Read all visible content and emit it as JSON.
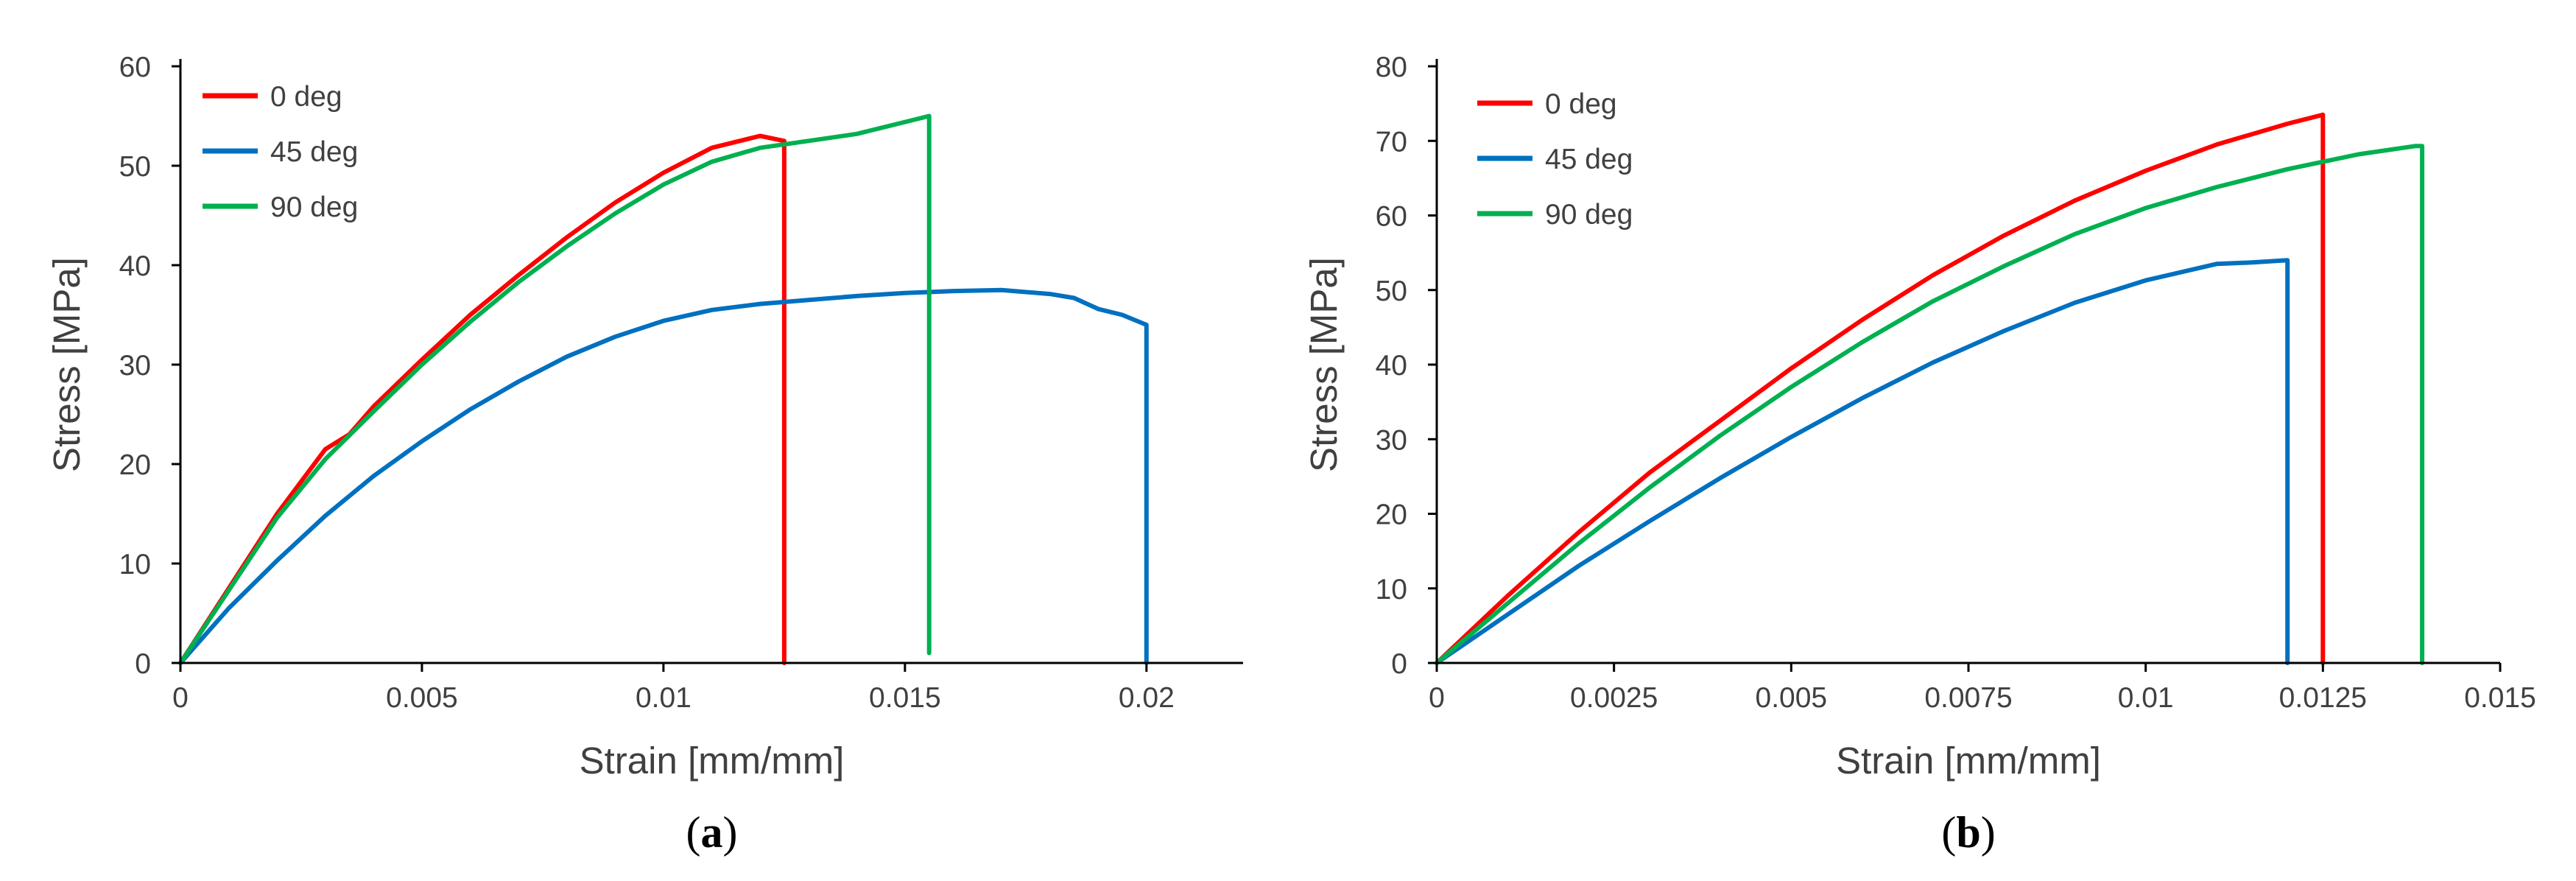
{
  "chart_data": [
    {
      "type": "line",
      "title": "",
      "panel_label": "a",
      "xlabel": "Strain [mm/mm]",
      "ylabel": "Stress [MPa]",
      "xlim": [
        0,
        0.022
      ],
      "ylim": [
        0,
        60
      ],
      "x_ticks": [
        0,
        0.005,
        0.01,
        0.015,
        0.02
      ],
      "x_tick_labels": [
        "0",
        "0.005",
        "0.01",
        "0.015",
        "0.02"
      ],
      "y_ticks": [
        0,
        10,
        20,
        30,
        40,
        50,
        60
      ],
      "y_tick_labels": [
        "0",
        "10",
        "20",
        "30",
        "40",
        "50",
        "60"
      ],
      "grid": false,
      "legend_position": "top-left",
      "series": [
        {
          "name": "0 deg",
          "color": "#ff0000",
          "x": [
            0,
            0.001,
            0.002,
            0.003,
            0.0035,
            0.004,
            0.005,
            0.006,
            0.007,
            0.008,
            0.009,
            0.01,
            0.011,
            0.012,
            0.0125,
            0.0125
          ],
          "y": [
            0,
            7.5,
            15,
            21.5,
            23,
            25.8,
            30.5,
            35,
            39,
            42.8,
            46.3,
            49.3,
            51.8,
            53,
            52.5,
            0
          ]
        },
        {
          "name": "45 deg",
          "color": "#0070c0",
          "x": [
            0,
            0.001,
            0.002,
            0.003,
            0.004,
            0.005,
            0.006,
            0.007,
            0.008,
            0.009,
            0.01,
            0.011,
            0.012,
            0.013,
            0.014,
            0.015,
            0.016,
            0.017,
            0.018,
            0.0185,
            0.019,
            0.0195,
            0.02,
            0.02
          ],
          "y": [
            0,
            5.5,
            10.3,
            14.8,
            18.8,
            22.3,
            25.5,
            28.3,
            30.8,
            32.8,
            34.4,
            35.5,
            36.1,
            36.5,
            36.9,
            37.2,
            37.4,
            37.5,
            37.1,
            36.7,
            35.6,
            35,
            34,
            0
          ]
        },
        {
          "name": "90 deg",
          "color": "#00b050",
          "x": [
            0,
            0.001,
            0.002,
            0.003,
            0.004,
            0.005,
            0.006,
            0.007,
            0.008,
            0.009,
            0.01,
            0.011,
            0.012,
            0.013,
            0.014,
            0.015,
            0.0155,
            0.0155
          ],
          "y": [
            0,
            7.3,
            14.6,
            20.5,
            25.3,
            30,
            34.3,
            38.3,
            41.9,
            45.2,
            48.1,
            50.4,
            51.8,
            52.5,
            53.2,
            54.4,
            55,
            1
          ]
        }
      ]
    },
    {
      "type": "line",
      "title": "",
      "panel_label": "b",
      "xlabel": "Strain [mm/mm]",
      "ylabel": "Stress [MPa]",
      "xlim": [
        0,
        0.015
      ],
      "ylim": [
        0,
        80
      ],
      "x_ticks": [
        0,
        0.0025,
        0.005,
        0.0075,
        0.01,
        0.0125,
        0.015
      ],
      "x_tick_labels": [
        "0",
        "0.0025",
        "0.005",
        "0.0075",
        "0.01",
        "0.0125",
        "0.015"
      ],
      "y_ticks": [
        0,
        10,
        20,
        30,
        40,
        50,
        60,
        70,
        80
      ],
      "y_tick_labels": [
        "0",
        "10",
        "20",
        "30",
        "40",
        "50",
        "60",
        "70",
        "80"
      ],
      "grid": false,
      "legend_position": "top-left",
      "series": [
        {
          "name": "0 deg",
          "color": "#ff0000",
          "x": [
            0,
            0.001,
            0.002,
            0.003,
            0.004,
            0.005,
            0.006,
            0.007,
            0.008,
            0.009,
            0.01,
            0.011,
            0.012,
            0.0125,
            0.0125
          ],
          "y": [
            0,
            9,
            17.5,
            25.5,
            32.5,
            39.5,
            46,
            52,
            57.3,
            62,
            66,
            69.5,
            72.3,
            73.5,
            0
          ]
        },
        {
          "name": "45 deg",
          "color": "#0070c0",
          "x": [
            0,
            0.001,
            0.002,
            0.003,
            0.004,
            0.005,
            0.006,
            0.007,
            0.008,
            0.009,
            0.01,
            0.011,
            0.0115,
            0.012,
            0.012
          ],
          "y": [
            0,
            6.5,
            13,
            19,
            24.8,
            30.3,
            35.5,
            40.3,
            44.5,
            48.3,
            51.3,
            53.5,
            53.7,
            54,
            0
          ]
        },
        {
          "name": "90 deg",
          "color": "#00b050",
          "x": [
            0,
            0.001,
            0.002,
            0.003,
            0.004,
            0.005,
            0.006,
            0.007,
            0.008,
            0.009,
            0.01,
            0.011,
            0.012,
            0.013,
            0.0138,
            0.0139,
            0.0139
          ],
          "y": [
            0,
            8,
            16,
            23.5,
            30.5,
            37,
            43,
            48.5,
            53.2,
            57.5,
            61,
            63.8,
            66.2,
            68.2,
            69.3,
            69.3,
            0
          ]
        }
      ]
    }
  ]
}
